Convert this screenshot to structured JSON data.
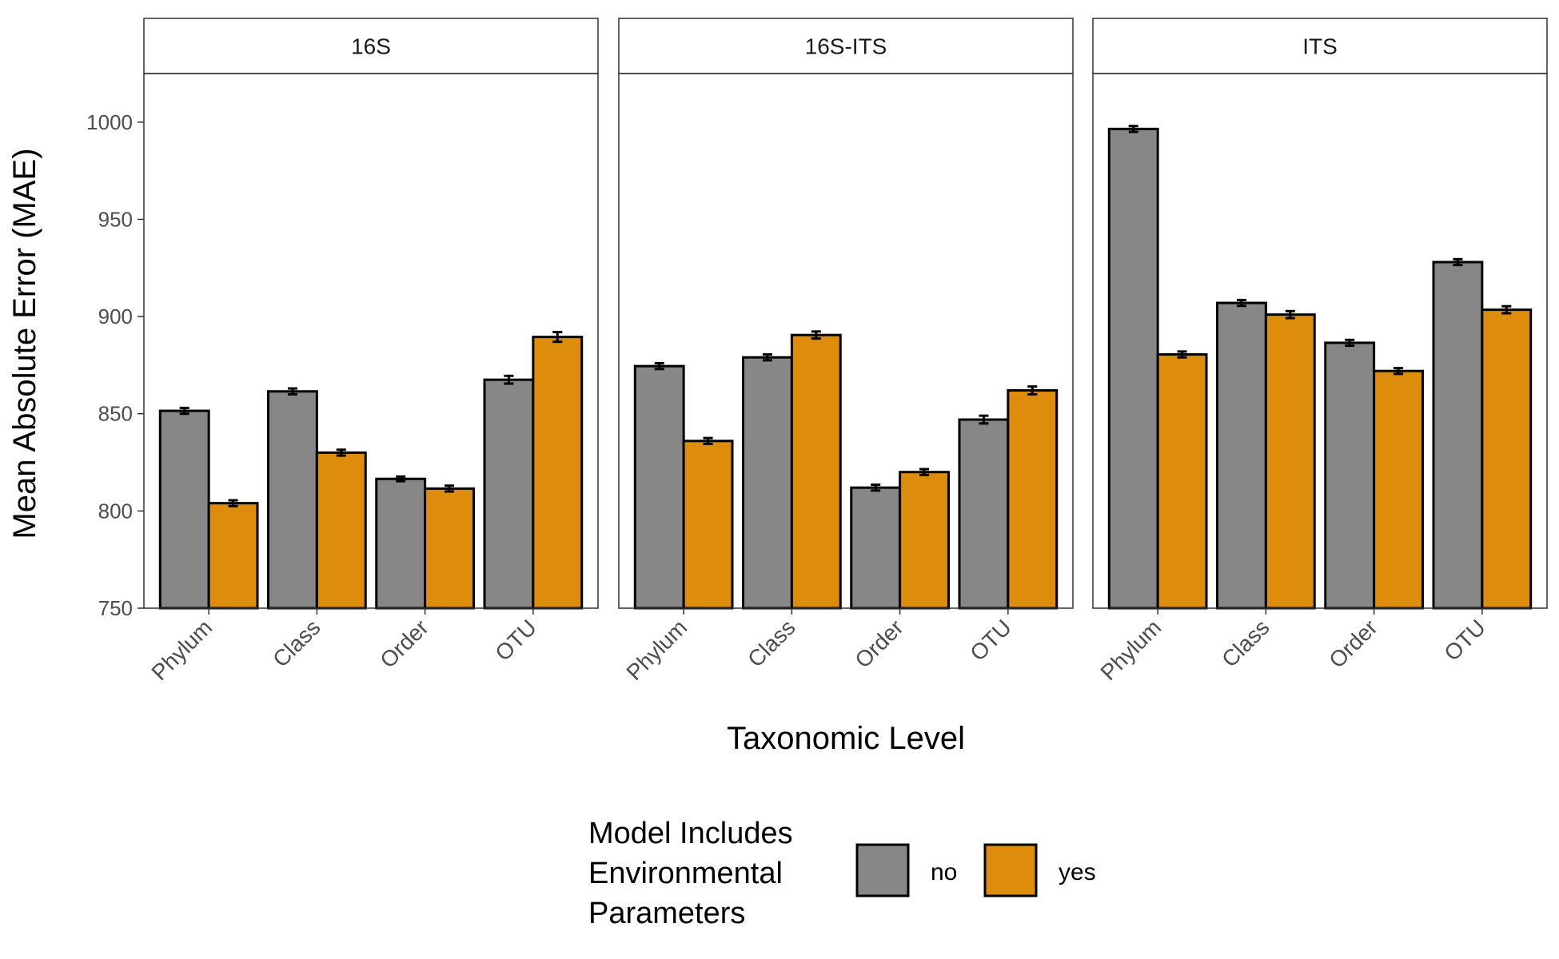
{
  "chart_data": {
    "type": "bar",
    "facets": [
      "16S",
      "16S-ITS",
      "ITS"
    ],
    "categories": [
      "Phylum",
      "Class",
      "Order",
      "OTU"
    ],
    "ylabel": "Mean Absolute Error (MAE)",
    "xlabel": "Taxonomic Level",
    "ylim": [
      750,
      1025
    ],
    "yticks": [
      750,
      800,
      850,
      900,
      950,
      1000
    ],
    "grid": false,
    "legend": {
      "title_lines": [
        "Model Includes",
        "Environmental",
        "Parameters"
      ],
      "position": "bottom",
      "entries": [
        {
          "label": "no",
          "color": "#878787"
        },
        {
          "label": "yes",
          "color": "#DE8C0B"
        }
      ]
    },
    "panels": [
      {
        "facet": "16S",
        "series": [
          {
            "name": "no",
            "values": [
              851.5,
              861.5,
              816.5,
              867.5
            ],
            "errors": [
              1.5,
              1.5,
              1.2,
              2
            ]
          },
          {
            "name": "yes",
            "values": [
              804,
              830,
              811.5,
              889.5
            ],
            "errors": [
              1.5,
              1.5,
              1.5,
              2.5
            ]
          }
        ]
      },
      {
        "facet": "16S-ITS",
        "series": [
          {
            "name": "no",
            "values": [
              874.5,
              879,
              812,
              847
            ],
            "errors": [
              1.5,
              1.5,
              1.5,
              2
            ]
          },
          {
            "name": "yes",
            "values": [
              836,
              890.5,
              820,
              862
            ],
            "errors": [
              1.5,
              1.8,
              1.5,
              2
            ]
          }
        ]
      },
      {
        "facet": "ITS",
        "series": [
          {
            "name": "no",
            "values": [
              996.5,
              907,
              886.5,
              928
            ],
            "errors": [
              1.5,
              1.5,
              1.5,
              1.5
            ]
          },
          {
            "name": "yes",
            "values": [
              880.5,
              901,
              872,
              903.5
            ],
            "errors": [
              1.5,
              1.8,
              1.5,
              1.8
            ]
          }
        ]
      }
    ]
  }
}
